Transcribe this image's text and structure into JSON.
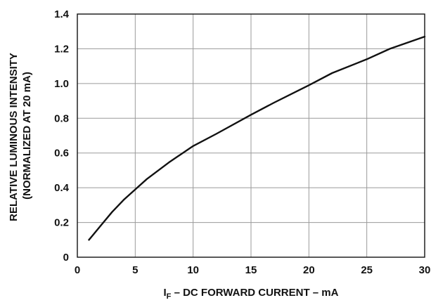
{
  "chart_data": {
    "type": "line",
    "title": "",
    "xlabel": {
      "prefix": "I",
      "subscript": "F",
      "rest": " – DC FORWARD CURRENT – mA"
    },
    "ylabel_lines": [
      "RELATIVE LUMINOUS INTENSITY",
      "(NORMALIZED AT 20 mA)"
    ],
    "xlim": [
      0,
      30
    ],
    "ylim": [
      0,
      1.4
    ],
    "x_ticks": [
      0,
      5,
      10,
      15,
      20,
      25,
      30
    ],
    "x_tick_labels": [
      "0",
      "5",
      "10",
      "15",
      "20",
      "25",
      "30"
    ],
    "y_ticks": [
      0,
      0.2,
      0.4,
      0.6,
      0.8,
      1.0,
      1.2,
      1.4
    ],
    "y_tick_labels": [
      "0",
      "0.2",
      "0.4",
      "0.6",
      "0.8",
      "1.0",
      "1.2",
      "1.4"
    ],
    "grid": true,
    "series": [
      {
        "x": [
          1,
          2,
          3,
          4,
          5,
          6,
          8,
          10,
          12,
          15,
          17,
          20,
          22,
          25,
          27,
          30
        ],
        "y": [
          0.1,
          0.18,
          0.26,
          0.33,
          0.39,
          0.45,
          0.55,
          0.64,
          0.71,
          0.82,
          0.89,
          0.99,
          1.06,
          1.14,
          1.2,
          1.27
        ]
      }
    ]
  }
}
